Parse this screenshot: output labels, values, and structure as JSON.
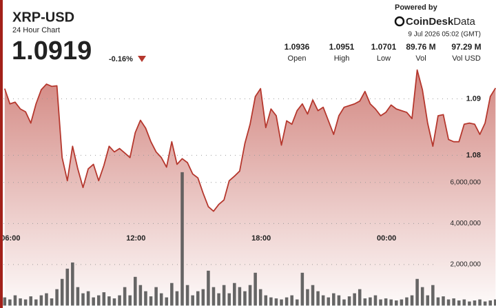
{
  "chart_data": {
    "type": "line",
    "title": "XRP-USD",
    "subtitle": "24 Hour Chart",
    "price": "1.0919",
    "change": "-0.16%",
    "stats": [
      {
        "value": "1.0936",
        "label": "Open"
      },
      {
        "value": "1.0951",
        "label": "High"
      },
      {
        "value": "1.0701",
        "label": "Low"
      },
      {
        "value": "89.76 M",
        "label": "Vol"
      },
      {
        "value": "97.29 M",
        "label": "Vol USD"
      }
    ],
    "branding": {
      "powered_by": "Powered by",
      "name": "CoinDesk",
      "name_suffix": "Data"
    },
    "timestamp": "9 Jul 2026 05:02 (GMT)",
    "categories": [
      null,
      "06:00",
      null,
      null,
      null,
      null,
      null,
      null,
      null,
      null,
      null,
      null,
      null,
      null,
      null,
      null,
      null,
      null,
      null,
      null,
      null,
      null,
      null,
      null,
      null,
      "12:00",
      null,
      null,
      null,
      null,
      null,
      null,
      null,
      null,
      null,
      null,
      null,
      null,
      null,
      null,
      null,
      null,
      null,
      null,
      null,
      null,
      null,
      null,
      null,
      "18:00",
      null,
      null,
      null,
      null,
      null,
      null,
      null,
      null,
      null,
      null,
      null,
      null,
      null,
      null,
      null,
      null,
      null,
      null,
      null,
      null,
      null,
      null,
      null,
      "00:00",
      null,
      null,
      null,
      null,
      null,
      null,
      null,
      null,
      null,
      null,
      null,
      null,
      null,
      null,
      null,
      null,
      null,
      null,
      null,
      null,
      null
    ],
    "series": [
      {
        "name": "Price",
        "type": "line",
        "color": "#b5372d",
        "values": [
          1.0918,
          1.0891,
          1.0894,
          1.0882,
          1.0877,
          1.0857,
          1.0891,
          1.0916,
          1.0926,
          1.0922,
          1.0923,
          1.0796,
          1.0755,
          1.0816,
          1.0776,
          1.0743,
          1.0776,
          1.0784,
          1.0755,
          1.0782,
          1.0816,
          1.0806,
          1.0812,
          1.0804,
          1.0796,
          1.084,
          1.0862,
          1.0848,
          1.0824,
          1.0806,
          1.0796,
          1.0779,
          1.0824,
          1.0784,
          1.0794,
          1.0787,
          1.0767,
          1.076,
          1.0733,
          1.0709,
          1.0701,
          1.0713,
          1.0721,
          1.0755,
          1.0763,
          1.0772,
          1.0821,
          1.0855,
          1.0904,
          1.0918,
          1.0849,
          1.0882,
          1.087,
          1.0818,
          1.0861,
          1.0855,
          1.0879,
          1.0891,
          1.0873,
          1.0898,
          1.0879,
          1.0885,
          1.0861,
          1.0837,
          1.087,
          1.0885,
          1.0888,
          1.0891,
          1.0896,
          1.0913,
          1.0891,
          1.0882,
          1.087,
          1.0876,
          1.0889,
          1.0882,
          1.0879,
          1.0876,
          1.0865,
          1.0951,
          1.0916,
          1.0857,
          1.0816,
          1.087,
          1.0872,
          1.0828,
          1.0824,
          1.0824,
          1.0855,
          1.0857,
          1.0855,
          1.0837,
          1.0857,
          1.0904,
          1.0919
        ]
      },
      {
        "name": "Volume",
        "type": "bar",
        "axis": "y2",
        "color": "#555555",
        "values": [
          400000,
          300000,
          500000,
          350000,
          300000,
          450000,
          300000,
          500000,
          600000,
          350000,
          800000,
          1300000,
          1800000,
          2100000,
          900000,
          600000,
          700000,
          400000,
          500000,
          650000,
          450000,
          350000,
          500000,
          900000,
          500000,
          1400000,
          1000000,
          700000,
          450000,
          900000,
          600000,
          400000,
          1100000,
          700000,
          6500000,
          1000000,
          500000,
          700000,
          800000,
          1700000,
          900000,
          600000,
          1000000,
          600000,
          1100000,
          900000,
          700000,
          1000000,
          1600000,
          800000,
          500000,
          400000,
          350000,
          300000,
          400000,
          500000,
          300000,
          1600000,
          800000,
          1000000,
          700000,
          500000,
          400000,
          600000,
          500000,
          300000,
          450000,
          600000,
          800000,
          350000,
          400000,
          500000,
          300000,
          350000,
          300000,
          250000,
          300000,
          400000,
          500000,
          1300000,
          900000,
          500000,
          1000000,
          400000,
          450000,
          300000,
          350000,
          250000,
          300000,
          200000,
          250000,
          300000,
          200000,
          250000,
          300000
        ]
      }
    ],
    "ylim": [
      1.0537,
      1.0959
    ],
    "yticks": [
      1.08,
      1.09
    ],
    "y2lim": [
      0,
      11700000
    ],
    "y2ticks": [
      {
        "value": 2000000,
        "label": "2,000,000"
      },
      {
        "value": 4000000,
        "label": "4,000,000"
      },
      {
        "value": 6000000,
        "label": "6,000,000"
      }
    ],
    "grid": true
  }
}
